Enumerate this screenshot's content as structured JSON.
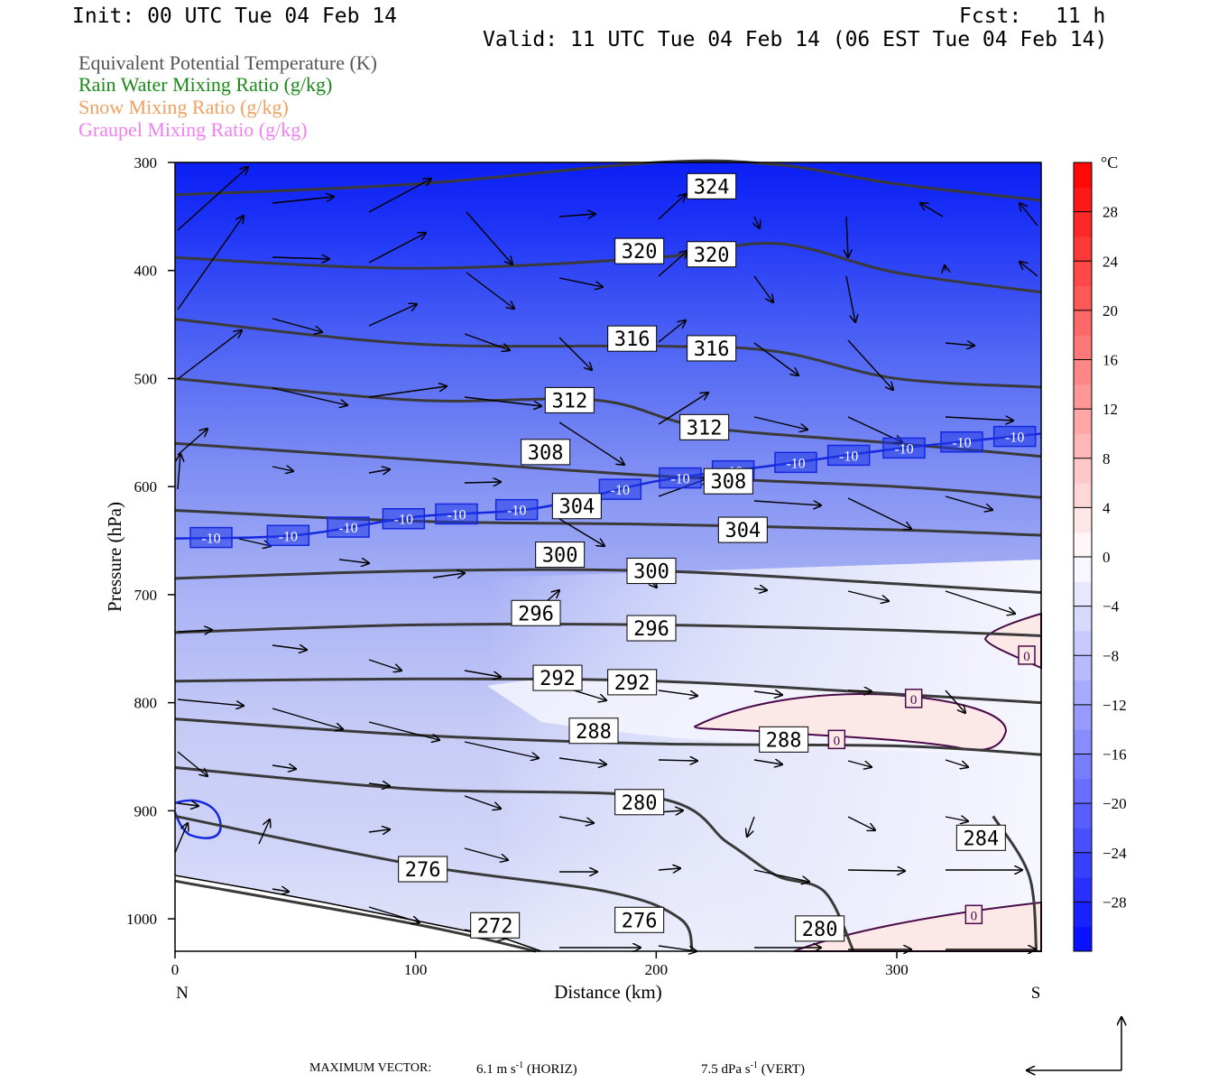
{
  "header": {
    "init": "Init: 00 UTC Tue 04 Feb 14",
    "fcst_label": "Fcst:",
    "fcst_value": "11 h",
    "valid": "Valid: 11 UTC Tue 04 Feb 14 (06 EST Tue 04 Feb 14)"
  },
  "legend": [
    {
      "text": "Equivalent Potential Temperature (K)",
      "color": "#555555"
    },
    {
      "text": "Rain Water Mixing Ratio (g/kg)",
      "color": "#1a8a1a"
    },
    {
      "text": "Snow Mixing Ratio (g/kg)",
      "color": "#f0a060"
    },
    {
      "text": "Graupel Mixing Ratio (g/kg)",
      "color": "#f080f0"
    }
  ],
  "footer": {
    "max_vector_label": "MAXIMUM VECTOR:",
    "horiz": "6.1 m s",
    "horiz_unit": "(HORIZ)",
    "vert": "7.5 dPa s",
    "vert_unit": "(VERT)",
    "exp": "-1"
  },
  "chart_data": {
    "type": "heatmap",
    "xlabel": "Distance (km)",
    "ylabel": "Pressure (hPa)",
    "xlim": [
      0,
      360
    ],
    "ylim": [
      1030,
      300
    ],
    "x_ticks": [
      0,
      100,
      200,
      300
    ],
    "y_ticks": [
      300,
      400,
      500,
      600,
      700,
      800,
      900,
      1000
    ],
    "x_end_labels": {
      "left": "N",
      "right": "S"
    },
    "colorbar": {
      "unit": "°C",
      "ticks": [
        28,
        24,
        20,
        16,
        12,
        8,
        4,
        0,
        -4,
        -8,
        -12,
        -16,
        -20,
        -24,
        -28
      ],
      "range": [
        -32,
        32
      ]
    },
    "theta_e_contours": [
      {
        "label": "324",
        "p": [
          [
            0,
            330
          ],
          [
            100,
            320
          ],
          [
            200,
            300
          ],
          [
            250,
            302
          ],
          [
            300,
            320
          ],
          [
            360,
            335
          ]
        ]
      },
      {
        "label": "320",
        "p": [
          [
            0,
            388
          ],
          [
            100,
            398
          ],
          [
            200,
            388
          ],
          [
            250,
            375
          ],
          [
            300,
            402
          ],
          [
            360,
            420
          ]
        ]
      },
      {
        "label": "316",
        "p": [
          [
            0,
            445
          ],
          [
            100,
            468
          ],
          [
            200,
            470
          ],
          [
            250,
            475
          ],
          [
            300,
            500
          ],
          [
            360,
            508
          ]
        ]
      },
      {
        "label": "312",
        "p": [
          [
            0,
            500
          ],
          [
            100,
            520
          ],
          [
            175,
            520
          ],
          [
            220,
            545
          ],
          [
            300,
            560
          ],
          [
            360,
            572
          ]
        ]
      },
      {
        "label": "308",
        "p": [
          [
            0,
            560
          ],
          [
            100,
            575
          ],
          [
            200,
            590
          ],
          [
            300,
            600
          ],
          [
            360,
            610
          ]
        ]
      },
      {
        "label": "304",
        "p": [
          [
            0,
            622
          ],
          [
            100,
            632
          ],
          [
            200,
            635
          ],
          [
            300,
            640
          ],
          [
            360,
            645
          ]
        ]
      },
      {
        "label": "300",
        "p": [
          [
            0,
            685
          ],
          [
            100,
            678
          ],
          [
            200,
            678
          ],
          [
            300,
            690
          ],
          [
            360,
            698
          ]
        ]
      },
      {
        "label": "296",
        "p": [
          [
            0,
            735
          ],
          [
            100,
            728
          ],
          [
            200,
            728
          ],
          [
            300,
            733
          ],
          [
            360,
            738
          ]
        ]
      },
      {
        "label": "292",
        "p": [
          [
            0,
            780
          ],
          [
            100,
            778
          ],
          [
            200,
            780
          ],
          [
            300,
            792
          ],
          [
            360,
            800
          ]
        ]
      },
      {
        "label": "288",
        "p": [
          [
            0,
            815
          ],
          [
            100,
            830
          ],
          [
            200,
            838
          ],
          [
            300,
            840
          ],
          [
            360,
            848
          ]
        ]
      },
      {
        "label": "280",
        "p": [
          [
            0,
            860
          ],
          [
            100,
            880
          ],
          [
            200,
            888
          ],
          [
            230,
            930
          ],
          [
            250,
            960
          ],
          [
            270,
            975
          ],
          [
            282,
            1030
          ]
        ]
      },
      {
        "label": "276",
        "p": [
          [
            0,
            905
          ],
          [
            100,
            950
          ],
          [
            180,
            975
          ],
          [
            210,
            1000
          ],
          [
            215,
            1030
          ]
        ]
      },
      {
        "label": "272",
        "p": [
          [
            0,
            965
          ],
          [
            100,
            1005
          ],
          [
            150,
            1030
          ]
        ]
      },
      {
        "label": "284",
        "p": [
          [
            340,
            905
          ],
          [
            355,
            960
          ],
          [
            358,
            1030
          ]
        ]
      }
    ],
    "contour_label_positions": [
      {
        "label": "324",
        "x": 223,
        "p": 322
      },
      {
        "label": "320",
        "x": 193,
        "p": 382
      },
      {
        "label": "320",
        "x": 223,
        "p": 385
      },
      {
        "label": "316",
        "x": 190,
        "p": 463
      },
      {
        "label": "316",
        "x": 223,
        "p": 472
      },
      {
        "label": "312",
        "x": 164,
        "p": 520
      },
      {
        "label": "312",
        "x": 220,
        "p": 545
      },
      {
        "label": "308",
        "x": 154,
        "p": 568
      },
      {
        "label": "308",
        "x": 230,
        "p": 595
      },
      {
        "label": "304",
        "x": 167,
        "p": 618
      },
      {
        "label": "304",
        "x": 236,
        "p": 640
      },
      {
        "label": "300",
        "x": 160,
        "p": 663
      },
      {
        "label": "300",
        "x": 198,
        "p": 678
      },
      {
        "label": "296",
        "x": 150,
        "p": 717
      },
      {
        "label": "296",
        "x": 198,
        "p": 731
      },
      {
        "label": "292",
        "x": 159,
        "p": 777
      },
      {
        "label": "292",
        "x": 190,
        "p": 781
      },
      {
        "label": "288",
        "x": 174,
        "p": 826
      },
      {
        "label": "288",
        "x": 253,
        "p": 834
      },
      {
        "label": "280",
        "x": 193,
        "p": 892
      },
      {
        "label": "284",
        "x": 335,
        "p": 925
      },
      {
        "label": "276",
        "x": 103,
        "p": 954
      },
      {
        "label": "276",
        "x": 193,
        "p": 1001
      },
      {
        "label": "272",
        "x": 133,
        "p": 1006
      },
      {
        "label": "280",
        "x": 268,
        "p": 1009
      }
    ],
    "minus10_line": {
      "label": "-10",
      "p": [
        [
          0,
          648
        ],
        [
          50,
          645
        ],
        [
          100,
          628
        ],
        [
          150,
          620
        ],
        [
          200,
          595
        ],
        [
          250,
          580
        ],
        [
          300,
          565
        ],
        [
          360,
          551
        ]
      ]
    },
    "zero_labels": [
      {
        "label": "0",
        "x": 354,
        "p": 756
      },
      {
        "label": "0",
        "x": 307,
        "p": 796
      },
      {
        "label": "0",
        "x": 275,
        "p": 834
      },
      {
        "label": "0",
        "x": 332,
        "p": 996
      }
    ]
  }
}
